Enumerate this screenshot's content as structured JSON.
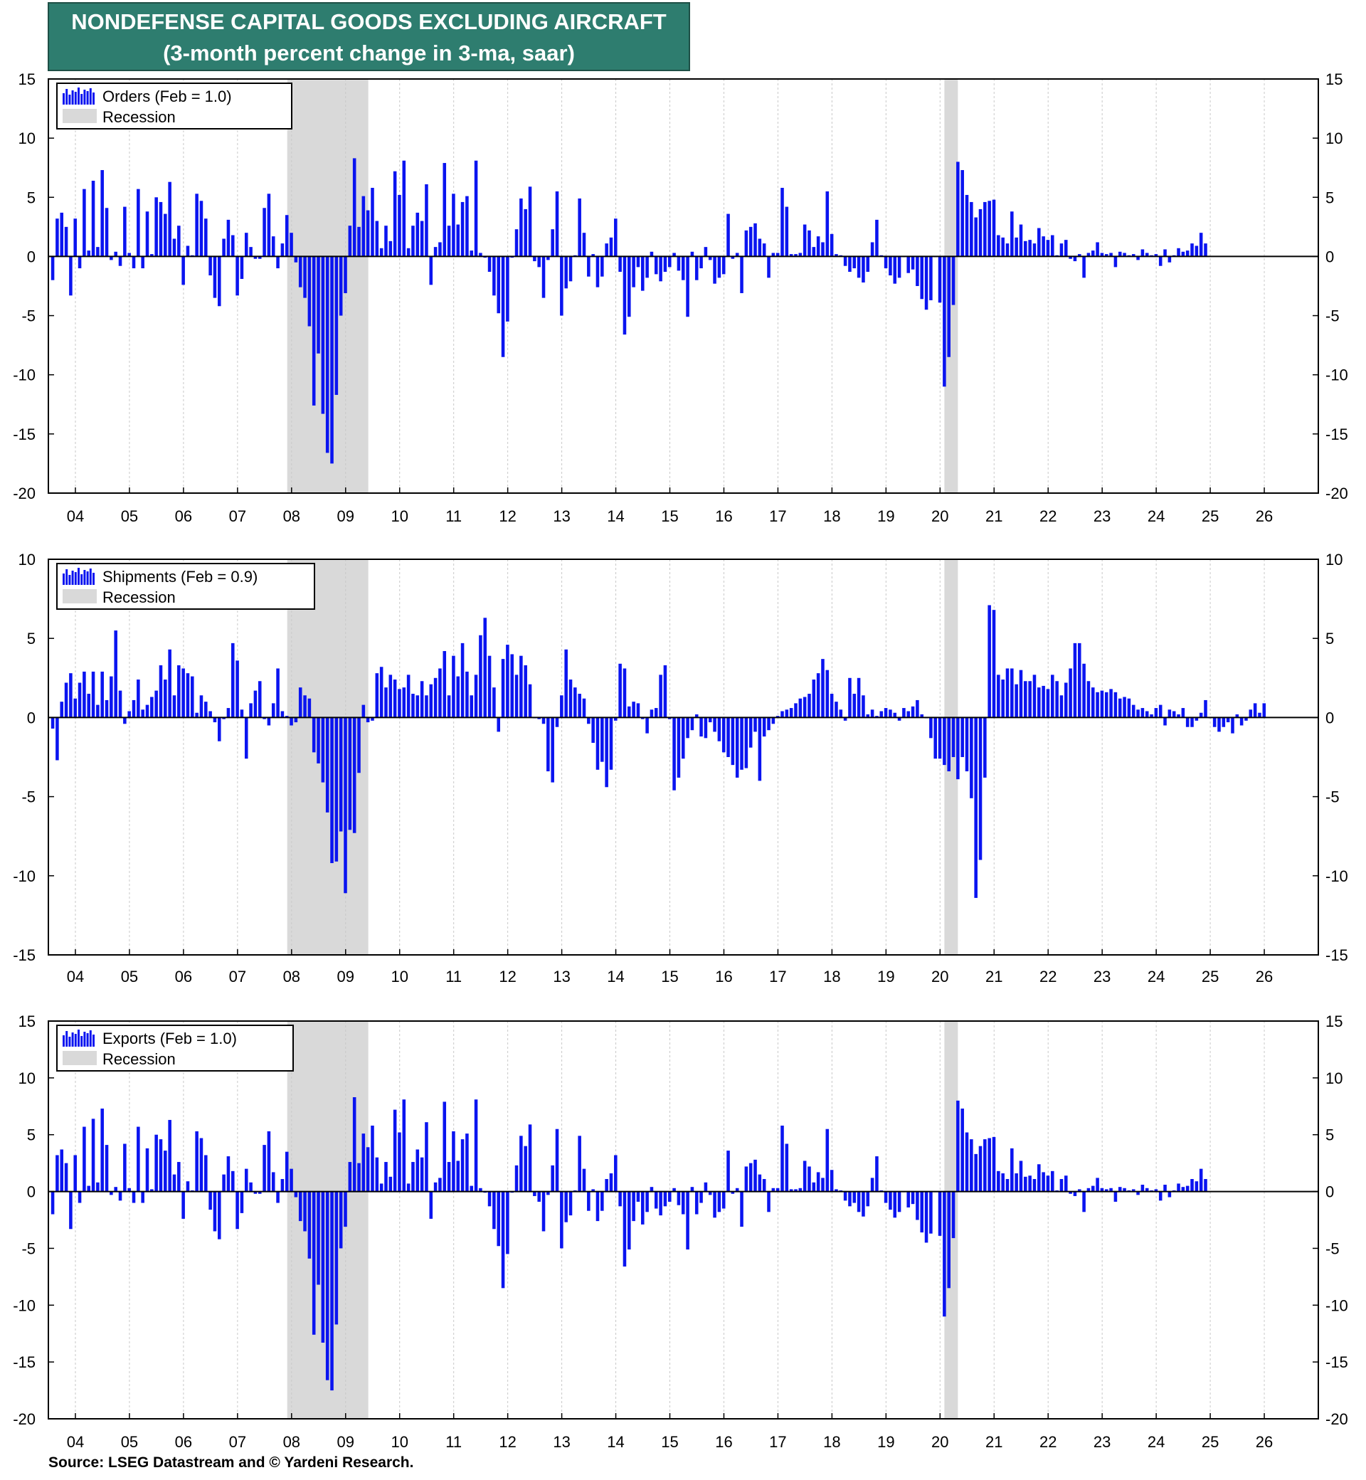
{
  "title": {
    "line1": "NONDEFENSE CAPITAL GOODS EXCLUDING AIRCRAFT",
    "line2": "(3-month percent change in 3-ma, saar)"
  },
  "source": "Source: LSEG Datastream and © Yardeni Research.",
  "colors": {
    "bar": "#0a14f0",
    "recession": "#d9d9d9",
    "title_bg": "#2e7d6f"
  },
  "chart_data": [
    {
      "type": "bar",
      "legend": {
        "series": "Orders (Feb = 1.0)",
        "recession": "Recession"
      },
      "ylim": [
        -20,
        15
      ],
      "yticks": [
        "15",
        "10",
        "5",
        "0",
        "-5",
        "-10",
        "-15",
        "-20"
      ],
      "xticks": [
        "04",
        "05",
        "06",
        "07",
        "08",
        "09",
        "10",
        "11",
        "12",
        "13",
        "14",
        "15",
        "16",
        "17",
        "18",
        "19",
        "20",
        "21",
        "22",
        "23",
        "24",
        "25",
        "26"
      ],
      "x_range": [
        2003.5,
        2027.0
      ],
      "recessions": [
        [
          2007.92,
          2009.42
        ],
        [
          2020.08,
          2020.33
        ]
      ],
      "start": 2003.58,
      "values": [
        -2,
        3.2,
        3.7,
        2.5,
        -3.3,
        3.2,
        -1,
        5.7,
        0.5,
        6.4,
        0.8,
        7.3,
        4.1,
        -0.3,
        0.4,
        -0.8,
        4.2,
        0.3,
        -1,
        5.7,
        -1,
        3.8,
        0.2,
        5,
        4.6,
        3.6,
        6.3,
        1.5,
        2.6,
        -2.4,
        0.9,
        0.1,
        5.3,
        4.7,
        3.2,
        -1.6,
        -3.5,
        -4.2,
        1.5,
        3.1,
        1.8,
        -3.3,
        -1.9,
        2,
        0.8,
        -0.2,
        -0.2,
        4.1,
        5.3,
        1.7,
        -1,
        1.1,
        3.5,
        2,
        -0.5,
        -2.6,
        -3.5,
        -5.9,
        -12.6,
        -8.2,
        -13.3,
        -16.6,
        -17.5,
        -11.7,
        -5,
        -3.1,
        2.6,
        8.3,
        2.5,
        5.1,
        3.9,
        5.8,
        3,
        0.7,
        2.6,
        1.3,
        7.2,
        5.2,
        8.1,
        0.7,
        2.6,
        3.7,
        3,
        6.1,
        -2.4,
        0.8,
        1.2,
        7.9,
        2.6,
        5.3,
        2.7,
        4.6,
        5.1,
        0.5,
        8.1,
        0.3,
        -0.1,
        -1.3,
        -3.3,
        -4.8,
        -8.5,
        -5.5,
        -0.1,
        2.3,
        4.9,
        4,
        5.9,
        -0.4,
        -0.9,
        -3.5,
        -0.3,
        2.3,
        5.5,
        -5,
        -2.7,
        -2.1,
        0.1,
        4.9,
        2,
        -1.7,
        0.2,
        -2.6,
        -1.7,
        1.1,
        1.6,
        3.2,
        -1.3,
        -6.6,
        -5.1,
        -2.6,
        -0.9,
        -2.9,
        -1.8,
        0.4,
        -1.5,
        -2.1,
        -1.3,
        -0.9,
        0.3,
        -1.2,
        -2,
        -5.1,
        0.4,
        -2,
        -1,
        0.8,
        -0.3,
        -2.3,
        -1.8,
        -1.5,
        3.6,
        -0.2,
        0.3,
        -3.1,
        2.2,
        2.5,
        2.8,
        1.5,
        1.1,
        -1.8,
        0.3,
        0.3,
        5.8,
        4.2,
        0.2,
        0.2,
        0.3,
        2.7,
        2.2,
        0.8,
        1.7,
        1.2,
        5.5,
        1.9,
        0.2,
        0.1,
        -0.8,
        -1.3,
        -1,
        -1.8,
        -2.2,
        -1.3,
        1.2,
        3.1,
        0.1,
        -1,
        -1.6,
        -2.3,
        -1.8,
        0,
        -1.4,
        -1.1,
        -2.5,
        -3.6,
        -4.5,
        -3.7,
        0,
        -3.9,
        -11,
        -8.5,
        -4.1,
        8,
        7.3,
        5.2,
        4.6,
        3.3,
        4,
        4.6,
        4.7,
        4.8,
        1.8,
        1.6,
        1.1,
        3.8,
        1.6,
        2.7,
        1.3,
        1.4,
        1.1,
        2.4,
        1.7,
        1.4,
        1.8,
        0.1,
        1.1,
        1.4,
        -0.2,
        -0.4,
        0.2,
        -1.8,
        0.3,
        0.5,
        1.2,
        0.3,
        0.2,
        0.3,
        -0.9,
        0.4,
        0.3,
        0.1,
        0.2,
        -0.3,
        0.6,
        0.3,
        0.1,
        0.2,
        -0.8,
        0.6,
        -0.5,
        0.1,
        0.7,
        0.4,
        0.5,
        1.1,
        0.9,
        2,
        1.1
      ],
      "zero_line": true
    },
    {
      "type": "bar",
      "legend": {
        "series": "Shipments (Feb = 0.9)",
        "recession": "Recession"
      },
      "ylim": [
        -15,
        10
      ],
      "yticks": [
        "10",
        "5",
        "0",
        "-5",
        "-10",
        "-15"
      ],
      "xticks": [
        "04",
        "05",
        "06",
        "07",
        "08",
        "09",
        "10",
        "11",
        "12",
        "13",
        "14",
        "15",
        "16",
        "17",
        "18",
        "19",
        "20",
        "21",
        "22",
        "23",
        "24",
        "25",
        "26"
      ],
      "x_range": [
        2003.5,
        2027.0
      ],
      "recessions": [
        [
          2007.92,
          2009.42
        ],
        [
          2020.08,
          2020.33
        ]
      ],
      "start": 2003.58,
      "values": [
        -0.7,
        -2.7,
        1,
        2.2,
        2.8,
        1.2,
        2.2,
        2.9,
        1.5,
        2.9,
        0.8,
        2.9,
        1.1,
        2.6,
        5.5,
        1.7,
        -0.4,
        0.4,
        1.1,
        2.4,
        0.5,
        0.8,
        1.3,
        1.7,
        3.3,
        2.4,
        4.3,
        1.4,
        3.3,
        3.1,
        2.8,
        2.6,
        0.3,
        1.4,
        1,
        0.4,
        -0.3,
        -1.5,
        -0.1,
        0.6,
        4.7,
        3.6,
        0.5,
        -2.6,
        0.9,
        1.7,
        2.3,
        -0.1,
        -0.5,
        0.9,
        3.1,
        0.4,
        0.1,
        -0.5,
        -0.3,
        1.9,
        1.4,
        1.2,
        -2.2,
        -2.9,
        -4.1,
        -6,
        -9.2,
        -9.1,
        -7.2,
        -11.1,
        -7.1,
        -7.3,
        -3.5,
        0.8,
        -0.3,
        -0.2,
        2.8,
        3.2,
        1.9,
        2.7,
        2.4,
        1.8,
        1.9,
        2.7,
        1.5,
        1.4,
        2.3,
        1.4,
        2.1,
        2.5,
        3.1,
        4.2,
        1.4,
        3.9,
        2.6,
        4.7,
        2.9,
        1.4,
        2.7,
        5.2,
        6.3,
        3.9,
        1.9,
        -0.9,
        3.7,
        4.6,
        4,
        2.7,
        3.9,
        3.3,
        2.1,
        0,
        -0.1,
        -0.4,
        -3.4,
        -4.1,
        -0.6,
        1.4,
        4.3,
        2.4,
        1.9,
        1.5,
        1.2,
        -0.4,
        -1.6,
        -3.3,
        -2.8,
        -4.4,
        -3.3,
        -0.2,
        3.4,
        3.1,
        0.7,
        1,
        0.9,
        -0.1,
        -1,
        0.5,
        0.6,
        2.7,
        3.3,
        -0.1,
        -4.6,
        -3.8,
        -2.6,
        -1.3,
        -0.8,
        0.2,
        -1.2,
        -1.3,
        -0.3,
        -0.9,
        -1.5,
        -2.2,
        -2.5,
        -3,
        -3.8,
        -3.3,
        -3.2,
        -1.9,
        -0.9,
        -4,
        -1.2,
        -0.8,
        -0.4,
        0.1,
        0.4,
        0.5,
        0.6,
        0.9,
        1.2,
        1.3,
        1.5,
        2.4,
        2.8,
        3.7,
        3,
        1.5,
        1,
        0.5,
        -0.2,
        2.5,
        1.5,
        2.5,
        1.4,
        0.2,
        0.5,
        0.1,
        0.4,
        0.6,
        0.5,
        0.3,
        -0.2,
        0.6,
        0.4,
        0.7,
        1.1,
        0.2,
        0,
        -1.3,
        -2.6,
        -2.6,
        -3,
        -3.4,
        -2.5,
        -3.9,
        -2.5,
        -3.4,
        -5.1,
        -11.4,
        -9,
        -3.8,
        7.1,
        6.8,
        2.7,
        2.4,
        3.1,
        3.1,
        2.1,
        3,
        2.3,
        2.3,
        2.7,
        1.9,
        2,
        1.8,
        2.7,
        2.3,
        1.4,
        2.2,
        3.1,
        4.7,
        4.7,
        3.4,
        2.3,
        1.9,
        1.6,
        1.7,
        1.6,
        1.8,
        1.6,
        1.2,
        1.3,
        1.2,
        0.8,
        0.5,
        0.6,
        0.4,
        0.2,
        0.6,
        0.8,
        -0.5,
        0.5,
        0.4,
        0.2,
        0.6,
        -0.6,
        -0.6,
        -0.2,
        0.3,
        1.1,
        0,
        -0.6,
        -0.9,
        -0.6,
        -0.3,
        -1,
        0.2,
        -0.5,
        -0.2,
        0.5,
        0.9,
        0.3,
        0.9
      ],
      "zero_line": true
    },
    {
      "type": "bar",
      "legend": {
        "series": "Exports (Feb = 1.0)",
        "recession": "Recession"
      },
      "ylim": [
        -20,
        15
      ],
      "yticks": [
        "15",
        "10",
        "5",
        "0",
        "-5",
        "-10",
        "-15",
        "-20"
      ],
      "xticks": [
        "04",
        "05",
        "06",
        "07",
        "08",
        "09",
        "10",
        "11",
        "12",
        "13",
        "14",
        "15",
        "16",
        "17",
        "18",
        "19",
        "20",
        "21",
        "22",
        "23",
        "24",
        "25",
        "26"
      ],
      "x_range": [
        2003.5,
        2027.0
      ],
      "recessions": [
        [
          2007.92,
          2009.42
        ],
        [
          2020.08,
          2020.33
        ]
      ],
      "start": 2003.58,
      "values": [
        -2,
        3.2,
        3.7,
        2.5,
        -3.3,
        3.2,
        -1,
        5.7,
        0.5,
        6.4,
        0.8,
        7.3,
        4.1,
        -0.3,
        0.4,
        -0.8,
        4.2,
        0.3,
        -1,
        5.7,
        -1,
        3.8,
        0.2,
        5,
        4.6,
        3.6,
        6.3,
        1.5,
        2.6,
        -2.4,
        0.9,
        0.1,
        5.3,
        4.7,
        3.2,
        -1.6,
        -3.5,
        -4.2,
        1.5,
        3.1,
        1.8,
        -3.3,
        -1.9,
        2,
        0.8,
        -0.2,
        -0.2,
        4.1,
        5.3,
        1.7,
        -1,
        1.1,
        3.5,
        2,
        -0.5,
        -2.6,
        -3.5,
        -5.9,
        -12.6,
        -8.2,
        -13.3,
        -16.6,
        -17.5,
        -11.7,
        -5,
        -3.1,
        2.6,
        8.3,
        2.5,
        5.1,
        3.9,
        5.8,
        3,
        0.7,
        2.6,
        1.3,
        7.2,
        5.2,
        8.1,
        0.7,
        2.6,
        3.7,
        3,
        6.1,
        -2.4,
        0.8,
        1.2,
        7.9,
        2.6,
        5.3,
        2.7,
        4.6,
        5.1,
        0.5,
        8.1,
        0.3,
        -0.1,
        -1.3,
        -3.3,
        -4.8,
        -8.5,
        -5.5,
        -0.1,
        2.3,
        4.9,
        4,
        5.9,
        -0.4,
        -0.9,
        -3.5,
        -0.3,
        2.3,
        5.5,
        -5,
        -2.7,
        -2.1,
        0.1,
        4.9,
        2,
        -1.7,
        0.2,
        -2.6,
        -1.7,
        1.1,
        1.6,
        3.2,
        -1.3,
        -6.6,
        -5.1,
        -2.6,
        -0.9,
        -2.9,
        -1.8,
        0.4,
        -1.5,
        -2.1,
        -1.3,
        -0.9,
        0.3,
        -1.2,
        -2,
        -5.1,
        0.4,
        -2,
        -1,
        0.8,
        -0.3,
        -2.3,
        -1.8,
        -1.5,
        3.6,
        -0.2,
        0.3,
        -3.1,
        2.2,
        2.5,
        2.8,
        1.5,
        1.1,
        -1.8,
        0.3,
        0.3,
        5.8,
        4.2,
        0.2,
        0.2,
        0.3,
        2.7,
        2.2,
        0.8,
        1.7,
        1.2,
        5.5,
        1.9,
        0.2,
        0.1,
        -0.8,
        -1.3,
        -1,
        -1.8,
        -2.2,
        -1.3,
        1.2,
        3.1,
        0.1,
        -1,
        -1.6,
        -2.3,
        -1.8,
        0,
        -1.4,
        -1.1,
        -2.5,
        -3.6,
        -4.5,
        -3.7,
        0,
        -3.9,
        -11,
        -8.5,
        -4.1,
        8,
        7.3,
        5.2,
        4.6,
        3.3,
        4,
        4.6,
        4.7,
        4.8,
        1.8,
        1.6,
        1.1,
        3.8,
        1.6,
        2.7,
        1.3,
        1.4,
        1.1,
        2.4,
        1.7,
        1.4,
        1.8,
        0.1,
        1.1,
        1.4,
        -0.2,
        -0.4,
        0.2,
        -1.8,
        0.3,
        0.5,
        1.2,
        0.3,
        0.2,
        0.3,
        -0.9,
        0.4,
        0.3,
        0.1,
        0.2,
        -0.3,
        0.6,
        0.3,
        0.1,
        0.2,
        -0.8,
        0.6,
        -0.5,
        0.1,
        0.7,
        0.4,
        0.5,
        1.1,
        0.9,
        2,
        1.1
      ],
      "zero_line": true
    }
  ]
}
